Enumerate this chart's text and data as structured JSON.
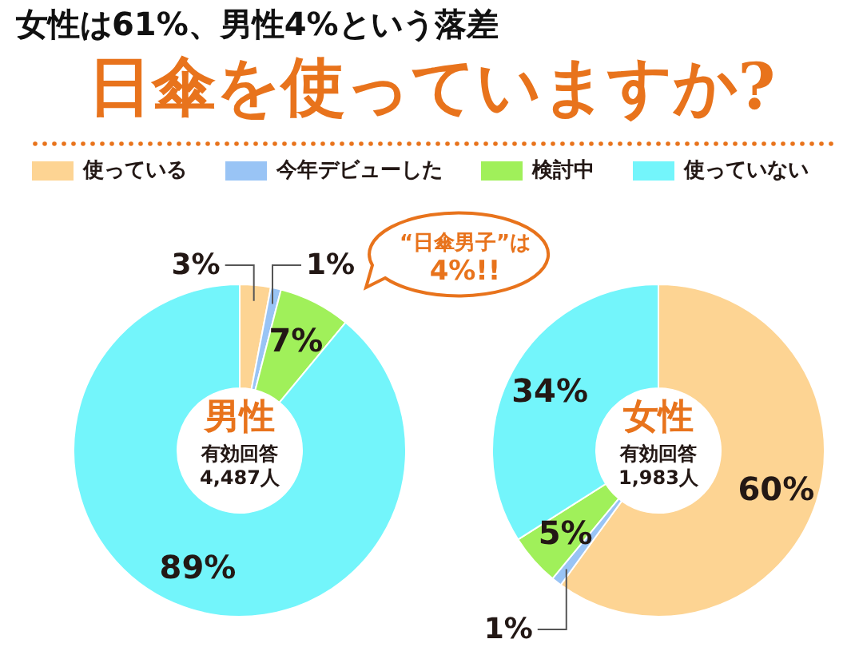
{
  "chart_data": [
    {
      "type": "donut",
      "title": "女性は61%、男性4%という落差",
      "subtitle": "日傘を使っていますか?",
      "categories": [
        "使っている",
        "今年デビューした",
        "検討中",
        "使っていない"
      ],
      "values": [
        3,
        1,
        7,
        89
      ],
      "colors": [
        "#fdd493",
        "#99c4f5",
        "#a0f05a",
        "#73f5fb"
      ],
      "value_labels": [
        "3%",
        "1%",
        "7%",
        "89%"
      ],
      "legend": "top",
      "annotations": [
        "男性",
        "有効回答\n4,487人",
        "“日傘男子”は\n4%!!"
      ]
    },
    {
      "type": "donut",
      "values": [
        60,
        1,
        5,
        34
      ],
      "colors": [
        "#fdd493",
        "#99c4f5",
        "#a0f05a",
        "#73f5fb"
      ],
      "value_labels": [
        "60%",
        "1%",
        "5%",
        "34%"
      ],
      "annotations": [
        "女性",
        "有効回答\n1,983人"
      ]
    }
  ]
}
